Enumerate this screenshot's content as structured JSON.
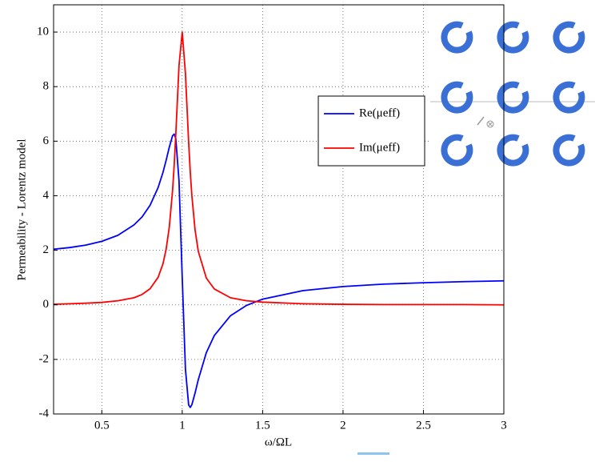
{
  "chart_data": {
    "type": "line",
    "ylabel": "Permeability - Lorentz model",
    "xlabel": "ω/ΩL",
    "x": [
      0.2,
      0.3,
      0.4,
      0.5,
      0.6,
      0.7,
      0.75,
      0.8,
      0.85,
      0.88,
      0.9,
      0.92,
      0.94,
      0.95,
      0.96,
      0.98,
      1.0,
      1.02,
      1.04,
      1.05,
      1.06,
      1.08,
      1.1,
      1.15,
      1.2,
      1.3,
      1.4,
      1.5,
      1.75,
      2,
      2.25,
      2.5,
      2.75,
      3
    ],
    "series": [
      {
        "name": "Re(μeff)",
        "color": "#0000ff",
        "values": [
          2.04,
          2.1,
          2.19,
          2.33,
          2.55,
          2.93,
          3.22,
          3.65,
          4.3,
          4.85,
          5.3,
          5.79,
          6.2,
          6.26,
          6.1,
          4.55,
          1,
          -2.36,
          -3.67,
          -3.76,
          -3.66,
          -3.23,
          -2.74,
          -1.75,
          -1.12,
          -0.4,
          -0.02,
          0.21,
          0.52,
          0.67,
          0.76,
          0.81,
          0.85,
          0.88
        ]
      },
      {
        "name": "Im(μeff)",
        "color": "#ff0000",
        "values": [
          0.02,
          0.04,
          0.06,
          0.09,
          0.15,
          0.26,
          0.38,
          0.59,
          1.01,
          1.5,
          2.04,
          2.87,
          4.2,
          5.12,
          6.25,
          8.77,
          10,
          8.48,
          5.95,
          4.87,
          4.0,
          2.74,
          1.96,
          0.98,
          0.58,
          0.26,
          0.15,
          0.1,
          0.04,
          0.02,
          0.01,
          0.01,
          0.01,
          0.0
        ]
      }
    ],
    "xlim": [
      0.2,
      3
    ],
    "ylim": [
      -4,
      11
    ],
    "xticks": [
      0.5,
      1,
      1.5,
      2,
      2.5,
      3
    ],
    "yticks": [
      -4,
      -2,
      0,
      2,
      4,
      6,
      8,
      10
    ],
    "grid": true
  }
}
